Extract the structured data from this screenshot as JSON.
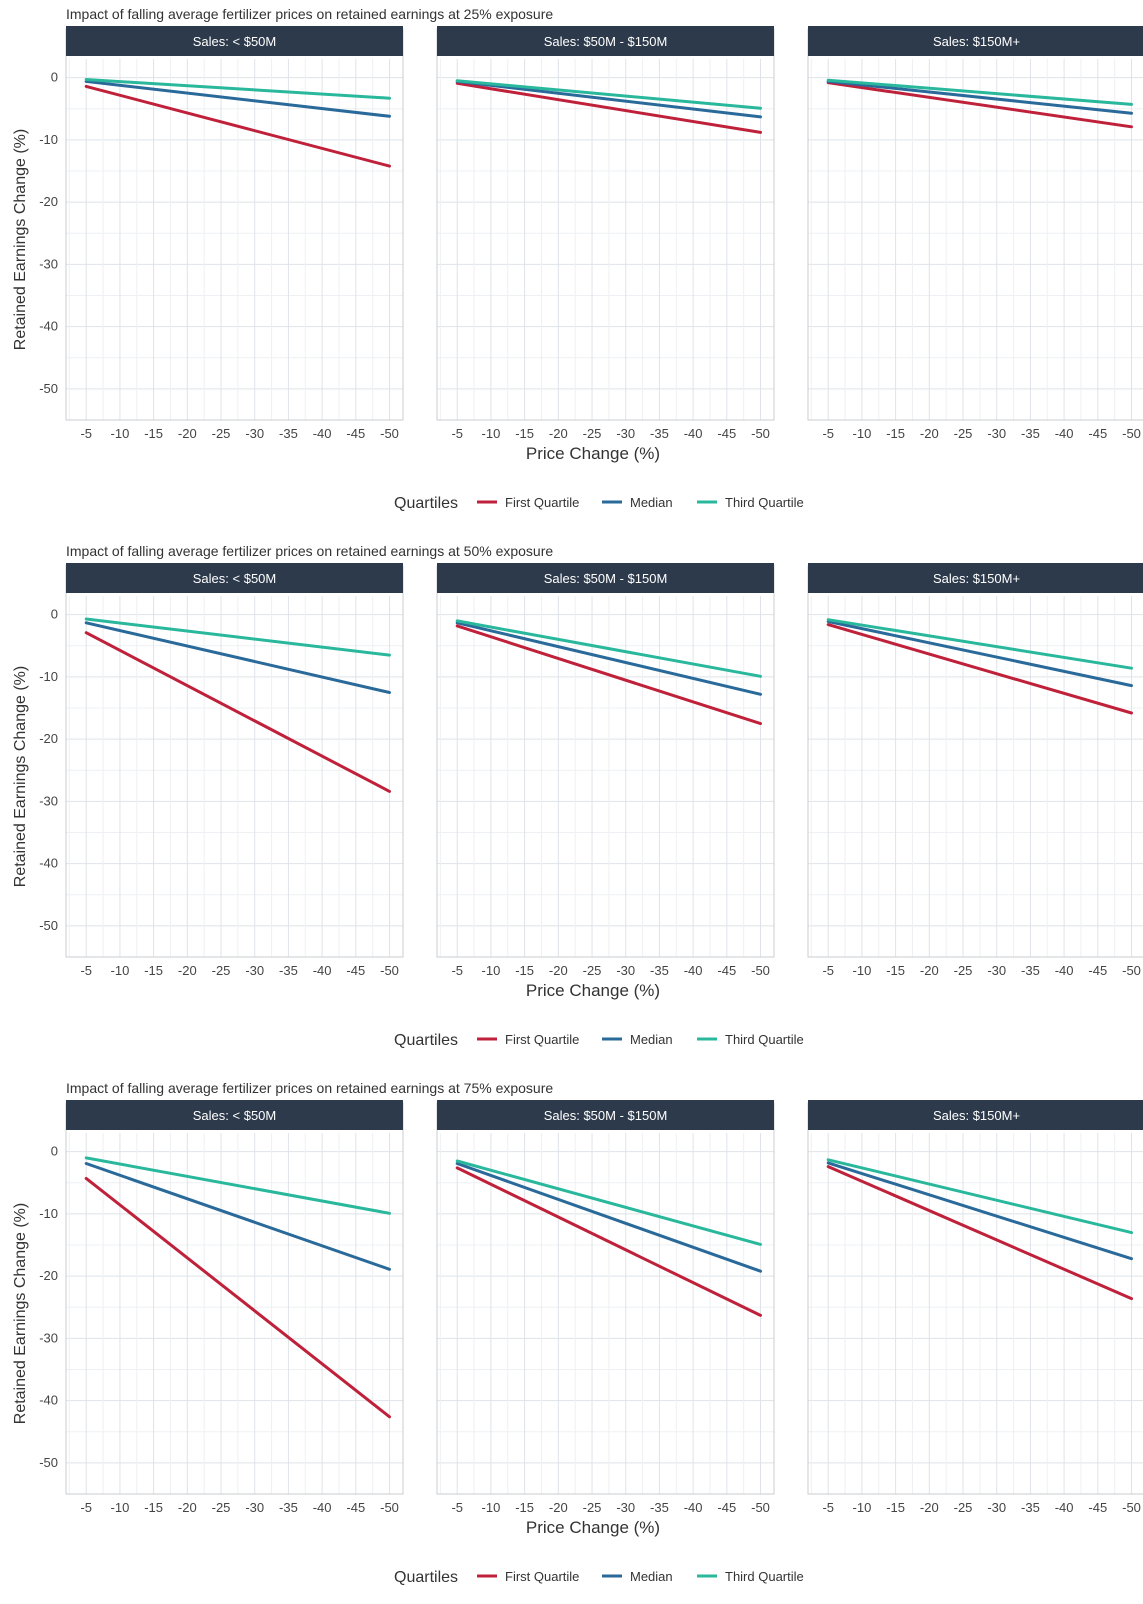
{
  "x_ticks": [
    -5,
    -10,
    -15,
    -20,
    -25,
    -30,
    -35,
    -40,
    -45,
    -50
  ],
  "y_ticks": [
    0,
    -10,
    -20,
    -30,
    -40,
    -50
  ],
  "ylim": [
    -55,
    3
  ],
  "xlim": [
    -2,
    -52
  ],
  "panel_titles": [
    "Sales: < $50M",
    "Sales: $50M - $150M",
    "Sales: $150M+"
  ],
  "legend": {
    "title": "Quartiles",
    "items": [
      {
        "label": "First Quartile",
        "color": "#c0213a"
      },
      {
        "label": "Median",
        "color": "#2a6a9a"
      },
      {
        "label": "Third Quartile",
        "color": "#29b89c"
      }
    ]
  },
  "colors": {
    "strip_bg": "#2d3a4b",
    "strip_text": "#ffffff",
    "grid": "#dfe3e8",
    "axis_text": "#444444"
  },
  "chart_data": [
    {
      "type": "line",
      "title": "Impact of falling average fertilizer prices on retained earnings at 25% exposure",
      "xlabel": "Price Change (%)",
      "ylabel": "Retained Earnings Change (%)",
      "panels": [
        {
          "name": "Sales: < $50M",
          "series": [
            {
              "name": "First Quartile",
              "x": [
                -5,
                -50
              ],
              "y": [
                -1.4,
                -14.2
              ]
            },
            {
              "name": "Median",
              "x": [
                -5,
                -50
              ],
              "y": [
                -0.6,
                -6.2
              ]
            },
            {
              "name": "Third Quartile",
              "x": [
                -5,
                -50
              ],
              "y": [
                -0.3,
                -3.3
              ]
            }
          ]
        },
        {
          "name": "Sales: $50M - $150M",
          "series": [
            {
              "name": "First Quartile",
              "x": [
                -5,
                -50
              ],
              "y": [
                -0.9,
                -8.8
              ]
            },
            {
              "name": "Median",
              "x": [
                -5,
                -50
              ],
              "y": [
                -0.6,
                -6.3
              ]
            },
            {
              "name": "Third Quartile",
              "x": [
                -5,
                -50
              ],
              "y": [
                -0.5,
                -4.9
              ]
            }
          ]
        },
        {
          "name": "Sales: $150M+",
          "series": [
            {
              "name": "First Quartile",
              "x": [
                -5,
                -50
              ],
              "y": [
                -0.8,
                -7.9
              ]
            },
            {
              "name": "Median",
              "x": [
                -5,
                -50
              ],
              "y": [
                -0.6,
                -5.7
              ]
            },
            {
              "name": "Third Quartile",
              "x": [
                -5,
                -50
              ],
              "y": [
                -0.4,
                -4.3
              ]
            }
          ]
        }
      ]
    },
    {
      "type": "line",
      "title": "Impact of falling average fertilizer prices on retained earnings at 50% exposure",
      "xlabel": "Price Change (%)",
      "ylabel": "Retained Earnings Change (%)",
      "panels": [
        {
          "name": "Sales: < $50M",
          "series": [
            {
              "name": "First Quartile",
              "x": [
                -5,
                -50
              ],
              "y": [
                -2.9,
                -28.4
              ]
            },
            {
              "name": "Median",
              "x": [
                -5,
                -50
              ],
              "y": [
                -1.3,
                -12.5
              ]
            },
            {
              "name": "Third Quartile",
              "x": [
                -5,
                -50
              ],
              "y": [
                -0.7,
                -6.5
              ]
            }
          ]
        },
        {
          "name": "Sales: $50M - $150M",
          "series": [
            {
              "name": "First Quartile",
              "x": [
                -5,
                -50
              ],
              "y": [
                -1.8,
                -17.5
              ]
            },
            {
              "name": "Median",
              "x": [
                -5,
                -50
              ],
              "y": [
                -1.3,
                -12.8
              ]
            },
            {
              "name": "Third Quartile",
              "x": [
                -5,
                -50
              ],
              "y": [
                -1.0,
                -9.9
              ]
            }
          ]
        },
        {
          "name": "Sales: $150M+",
          "series": [
            {
              "name": "First Quartile",
              "x": [
                -5,
                -50
              ],
              "y": [
                -1.6,
                -15.8
              ]
            },
            {
              "name": "Median",
              "x": [
                -5,
                -50
              ],
              "y": [
                -1.1,
                -11.4
              ]
            },
            {
              "name": "Third Quartile",
              "x": [
                -5,
                -50
              ],
              "y": [
                -0.8,
                -8.6
              ]
            }
          ]
        }
      ]
    },
    {
      "type": "line",
      "title": "Impact of falling average fertilizer prices on retained earnings at 75% exposure",
      "xlabel": "Price Change (%)",
      "ylabel": "Retained Earnings Change (%)",
      "panels": [
        {
          "name": "Sales: < $50M",
          "series": [
            {
              "name": "First Quartile",
              "x": [
                -5,
                -50
              ],
              "y": [
                -4.3,
                -42.6
              ]
            },
            {
              "name": "Median",
              "x": [
                -5,
                -50
              ],
              "y": [
                -1.9,
                -18.9
              ]
            },
            {
              "name": "Third Quartile",
              "x": [
                -5,
                -50
              ],
              "y": [
                -1.0,
                -9.9
              ]
            }
          ]
        },
        {
          "name": "Sales: $50M - $150M",
          "series": [
            {
              "name": "First Quartile",
              "x": [
                -5,
                -50
              ],
              "y": [
                -2.6,
                -26.3
              ]
            },
            {
              "name": "Median",
              "x": [
                -5,
                -50
              ],
              "y": [
                -1.9,
                -19.2
              ]
            },
            {
              "name": "Third Quartile",
              "x": [
                -5,
                -50
              ],
              "y": [
                -1.5,
                -14.9
              ]
            }
          ]
        },
        {
          "name": "Sales: $150M+",
          "series": [
            {
              "name": "First Quartile",
              "x": [
                -5,
                -50
              ],
              "y": [
                -2.4,
                -23.6
              ]
            },
            {
              "name": "Median",
              "x": [
                -5,
                -50
              ],
              "y": [
                -1.8,
                -17.2
              ]
            },
            {
              "name": "Third Quartile",
              "x": [
                -5,
                -50
              ],
              "y": [
                -1.3,
                -13.0
              ]
            }
          ]
        }
      ]
    }
  ]
}
